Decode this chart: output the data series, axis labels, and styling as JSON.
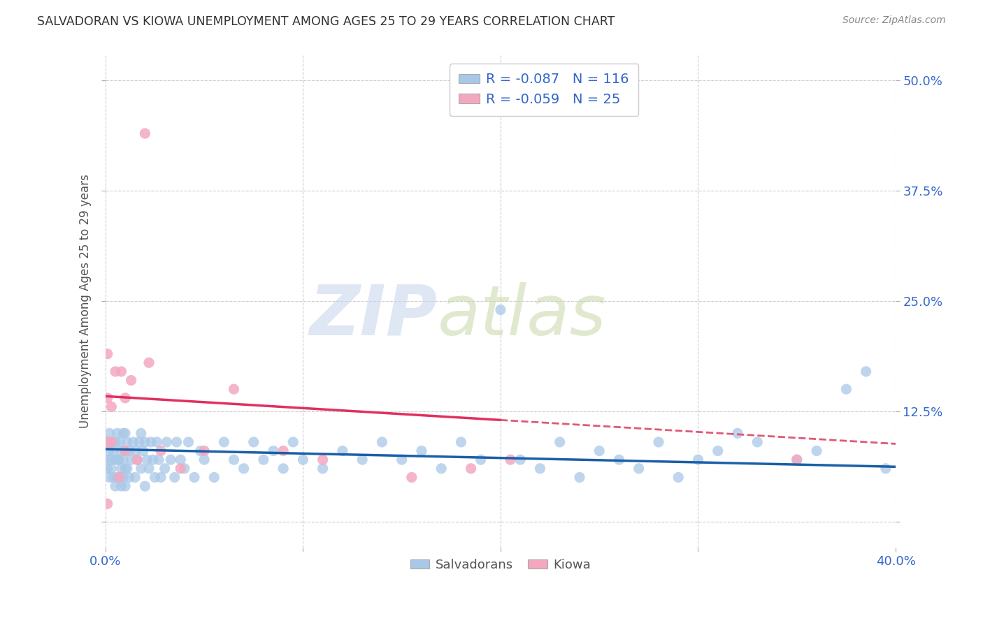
{
  "title": "SALVADORAN VS KIOWA UNEMPLOYMENT AMONG AGES 25 TO 29 YEARS CORRELATION CHART",
  "source": "Source: ZipAtlas.com",
  "ylabel": "Unemployment Among Ages 25 to 29 years",
  "xlim": [
    0.0,
    0.4
  ],
  "ylim": [
    -0.03,
    0.53
  ],
  "xticks": [
    0.0,
    0.1,
    0.2,
    0.3,
    0.4
  ],
  "xticklabels": [
    "0.0%",
    "",
    "",
    "",
    "40.0%"
  ],
  "yticks": [
    0.0,
    0.125,
    0.25,
    0.375,
    0.5
  ],
  "yticklabels": [
    "",
    "12.5%",
    "25.0%",
    "37.5%",
    "50.0%"
  ],
  "salvadoran_color": "#a8c8e8",
  "kiowa_color": "#f4a8c0",
  "salvadoran_line_color": "#1a5fa8",
  "kiowa_line_color": "#e03060",
  "kiowa_dashed_color": "#e05878",
  "grid_color": "#cccccc",
  "background_color": "#ffffff",
  "legend_R_salvadoran": "-0.087",
  "legend_N_salvadoran": "116",
  "legend_R_kiowa": "-0.059",
  "legend_N_kiowa": "25",
  "salvadoran_trend_x0": 0.0,
  "salvadoran_trend_x1": 0.4,
  "salvadoran_trend_y0": 0.082,
  "salvadoran_trend_y1": 0.062,
  "kiowa_trend_solid_x0": 0.0,
  "kiowa_trend_solid_x1": 0.2,
  "kiowa_trend_y0": 0.142,
  "kiowa_trend_solid_y1": 0.115,
  "kiowa_trend_dashed_x0": 0.2,
  "kiowa_trend_dashed_x1": 0.4,
  "kiowa_trend_dashed_y0": 0.115,
  "kiowa_trend_dashed_y1": 0.088,
  "salvadoran_x": [
    0.001,
    0.001,
    0.001,
    0.002,
    0.002,
    0.002,
    0.003,
    0.003,
    0.003,
    0.004,
    0.004,
    0.005,
    0.005,
    0.005,
    0.006,
    0.006,
    0.006,
    0.007,
    0.007,
    0.007,
    0.008,
    0.008,
    0.008,
    0.009,
    0.009,
    0.009,
    0.01,
    0.01,
    0.01,
    0.01,
    0.011,
    0.011,
    0.012,
    0.012,
    0.013,
    0.014,
    0.015,
    0.015,
    0.016,
    0.017,
    0.018,
    0.018,
    0.019,
    0.02,
    0.02,
    0.021,
    0.022,
    0.023,
    0.024,
    0.025,
    0.026,
    0.027,
    0.028,
    0.03,
    0.031,
    0.033,
    0.035,
    0.036,
    0.038,
    0.04,
    0.042,
    0.045,
    0.048,
    0.05,
    0.055,
    0.06,
    0.065,
    0.07,
    0.075,
    0.08,
    0.085,
    0.09,
    0.095,
    0.1,
    0.11,
    0.12,
    0.13,
    0.14,
    0.15,
    0.16,
    0.17,
    0.18,
    0.19,
    0.2,
    0.21,
    0.22,
    0.23,
    0.24,
    0.25,
    0.26,
    0.27,
    0.28,
    0.29,
    0.3,
    0.31,
    0.32,
    0.33,
    0.35,
    0.36,
    0.375,
    0.385,
    0.395
  ],
  "salvadoran_y": [
    0.06,
    0.07,
    0.09,
    0.05,
    0.08,
    0.1,
    0.06,
    0.07,
    0.09,
    0.05,
    0.08,
    0.04,
    0.07,
    0.09,
    0.05,
    0.07,
    0.1,
    0.05,
    0.07,
    0.09,
    0.04,
    0.06,
    0.08,
    0.05,
    0.07,
    0.1,
    0.04,
    0.06,
    0.08,
    0.1,
    0.06,
    0.09,
    0.05,
    0.08,
    0.07,
    0.09,
    0.05,
    0.08,
    0.07,
    0.09,
    0.06,
    0.1,
    0.08,
    0.04,
    0.09,
    0.07,
    0.06,
    0.09,
    0.07,
    0.05,
    0.09,
    0.07,
    0.05,
    0.06,
    0.09,
    0.07,
    0.05,
    0.09,
    0.07,
    0.06,
    0.09,
    0.05,
    0.08,
    0.07,
    0.05,
    0.09,
    0.07,
    0.06,
    0.09,
    0.07,
    0.08,
    0.06,
    0.09,
    0.07,
    0.06,
    0.08,
    0.07,
    0.09,
    0.07,
    0.08,
    0.06,
    0.09,
    0.07,
    0.24,
    0.07,
    0.06,
    0.09,
    0.05,
    0.08,
    0.07,
    0.06,
    0.09,
    0.05,
    0.07,
    0.08,
    0.1,
    0.09,
    0.07,
    0.08,
    0.15,
    0.17,
    0.06
  ],
  "kiowa_x": [
    0.001,
    0.001,
    0.001,
    0.001,
    0.003,
    0.003,
    0.005,
    0.007,
    0.008,
    0.01,
    0.01,
    0.013,
    0.016,
    0.022,
    0.028,
    0.038,
    0.05,
    0.065,
    0.09,
    0.11,
    0.155,
    0.185,
    0.205,
    0.02,
    0.35
  ],
  "kiowa_y": [
    0.02,
    0.09,
    0.14,
    0.19,
    0.09,
    0.13,
    0.17,
    0.05,
    0.17,
    0.08,
    0.14,
    0.16,
    0.07,
    0.18,
    0.08,
    0.06,
    0.08,
    0.15,
    0.08,
    0.07,
    0.05,
    0.06,
    0.07,
    0.44,
    0.07
  ]
}
